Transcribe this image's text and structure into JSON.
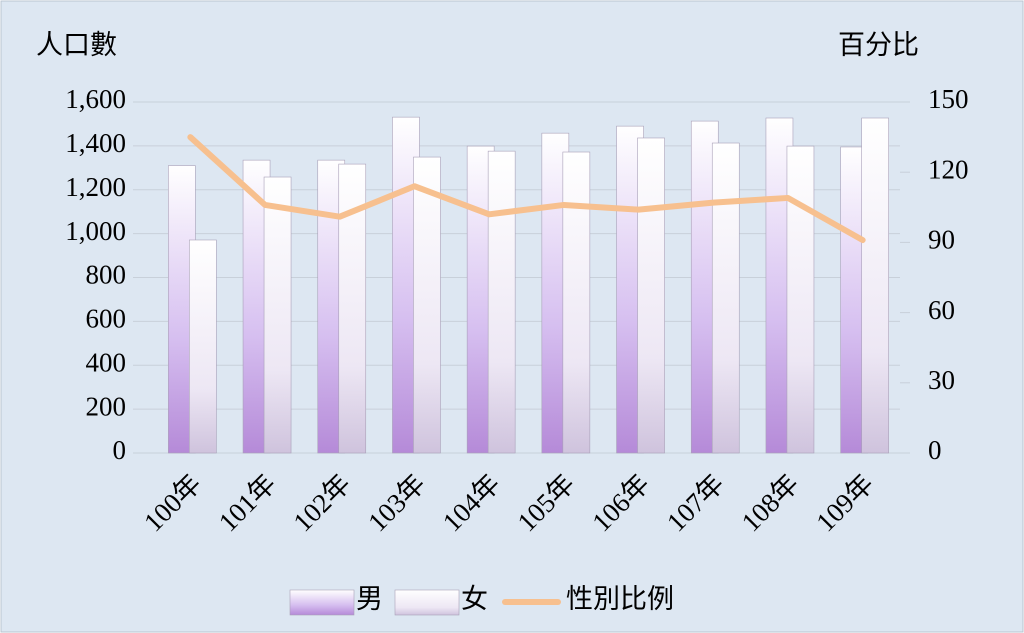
{
  "chart_data": {
    "type": "bar_line",
    "y_label": "人口數",
    "y2_label": "百分比",
    "categories": [
      "100年",
      "101年",
      "102年",
      "103年",
      "104年",
      "105年",
      "106年",
      "107年",
      "108年",
      "109年"
    ],
    "series": [
      {
        "name": "男",
        "color": "#b58ad8",
        "values": [
          1310,
          1335,
          1335,
          1531,
          1399,
          1458,
          1490,
          1513,
          1527,
          1395
        ]
      },
      {
        "name": "女",
        "color": "#ddd3ea",
        "values": [
          971,
          1258,
          1317,
          1349,
          1376,
          1372,
          1436,
          1413,
          1399,
          1527
        ]
      },
      {
        "name": "性別比例",
        "color": "#f7c08f",
        "axis": "y2",
        "values": [
          135,
          106,
          101,
          114,
          102,
          106,
          104,
          107,
          109,
          91
        ]
      }
    ],
    "ylim": [
      0,
      1600
    ],
    "yticks": [
      0,
      200,
      400,
      600,
      800,
      {
        "value": 1000,
        "label": "1,000"
      },
      {
        "value": 1200,
        "label": "1,200"
      },
      {
        "value": 1400,
        "label": "1,400"
      },
      {
        "value": 1600,
        "label": "1,600"
      }
    ],
    "y2lim": [
      0,
      150
    ],
    "y2ticks": [
      0,
      30,
      60,
      90,
      120,
      150
    ],
    "grid": true,
    "legend": "bottom"
  }
}
